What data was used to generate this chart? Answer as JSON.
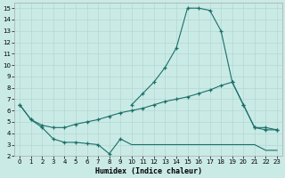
{
  "xlabel": "Humidex (Indice chaleur)",
  "bg_color": "#caeae6",
  "grid_color": "#b2d8d4",
  "line_color": "#1a7068",
  "xlim": [
    -0.5,
    23.5
  ],
  "ylim": [
    2,
    15.5
  ],
  "xticks": [
    0,
    1,
    2,
    3,
    4,
    5,
    6,
    7,
    8,
    9,
    10,
    11,
    12,
    13,
    14,
    15,
    16,
    17,
    18,
    19,
    20,
    21,
    22,
    23
  ],
  "yticks": [
    2,
    3,
    4,
    5,
    6,
    7,
    8,
    9,
    10,
    11,
    12,
    13,
    14,
    15
  ],
  "line_peak_x": [
    10,
    11,
    12,
    13,
    14,
    15,
    16,
    17,
    18,
    19,
    20,
    21,
    22,
    23
  ],
  "line_peak_y": [
    6.5,
    7.5,
    8.5,
    9.8,
    11.5,
    15.0,
    15.0,
    14.8,
    13.0,
    8.5,
    6.5,
    4.5,
    4.5,
    4.3
  ],
  "line_upper_x": [
    0,
    1,
    2,
    3,
    4,
    5,
    6,
    7,
    8,
    9,
    10,
    11,
    12,
    13,
    14,
    15,
    16,
    17,
    18,
    19,
    20,
    21,
    22,
    23
  ],
  "line_upper_y": [
    6.5,
    5.2,
    4.7,
    4.5,
    4.5,
    4.8,
    5.0,
    5.2,
    5.5,
    5.8,
    6.0,
    6.2,
    6.5,
    6.8,
    7.0,
    7.2,
    7.5,
    7.8,
    8.2,
    8.5,
    6.5,
    4.5,
    4.3,
    4.3
  ],
  "line_lower_x": [
    0,
    1,
    2,
    3,
    4,
    5,
    6,
    7,
    8,
    9
  ],
  "line_lower_y": [
    6.5,
    5.2,
    4.5,
    3.5,
    3.2,
    3.2,
    3.1,
    3.0,
    2.2,
    3.5
  ],
  "line_flat_x": [
    9,
    10,
    11,
    12,
    13,
    14,
    15,
    16,
    17,
    18,
    19,
    20,
    21,
    22,
    23
  ],
  "line_flat_y": [
    3.5,
    3.0,
    3.0,
    3.0,
    3.0,
    3.0,
    3.0,
    3.0,
    3.0,
    3.0,
    3.0,
    3.0,
    3.0,
    2.5,
    2.5
  ]
}
